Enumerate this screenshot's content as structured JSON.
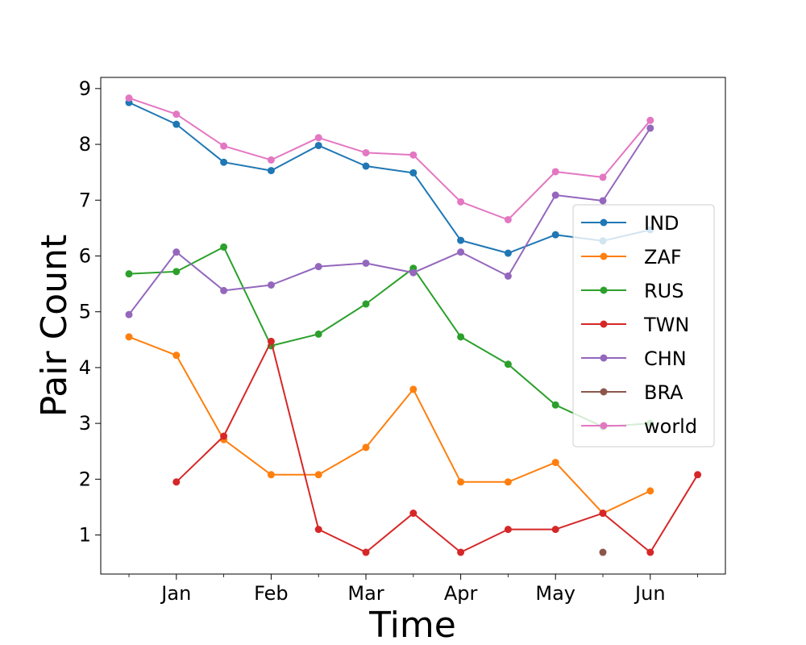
{
  "chart_data": {
    "type": "line",
    "xlabel": "Time",
    "ylabel": "Pair Count",
    "x_major_ticks": [
      "Jan",
      "Feb",
      "Mar",
      "Apr",
      "May",
      "Jun"
    ],
    "ylim": [
      0.3,
      9.2
    ],
    "y_ticks": [
      1,
      2,
      3,
      4,
      5,
      6,
      7,
      8,
      9
    ],
    "grid": false,
    "legend_position": "center-right",
    "points_per_series": 13,
    "series": [
      {
        "name": "IND",
        "color": "#1f77b4",
        "values": [
          8.75,
          8.36,
          7.68,
          7.53,
          7.98,
          7.61,
          7.49,
          6.28,
          6.05,
          6.38,
          6.27,
          6.47,
          null
        ]
      },
      {
        "name": "ZAF",
        "color": "#ff7f0e",
        "values": [
          4.55,
          4.22,
          2.71,
          2.08,
          2.08,
          2.57,
          3.61,
          1.95,
          1.95,
          2.3,
          1.39,
          1.79,
          null
        ]
      },
      {
        "name": "RUS",
        "color": "#2ca02c",
        "values": [
          5.68,
          5.72,
          6.16,
          4.39,
          4.6,
          5.14,
          5.78,
          4.55,
          4.06,
          3.33,
          2.94,
          3.0,
          null
        ]
      },
      {
        "name": "TWN",
        "color": "#d62728",
        "values": [
          null,
          1.95,
          2.77,
          4.47,
          1.1,
          0.69,
          1.39,
          0.69,
          1.1,
          1.1,
          1.39,
          0.69,
          2.08
        ]
      },
      {
        "name": "CHN",
        "color": "#9467bd",
        "values": [
          4.95,
          6.07,
          5.38,
          5.48,
          5.81,
          5.87,
          5.7,
          6.07,
          5.64,
          7.09,
          6.99,
          8.29,
          null
        ]
      },
      {
        "name": "BRA",
        "color": "#8c564b",
        "values": [
          null,
          null,
          null,
          null,
          null,
          null,
          null,
          null,
          null,
          null,
          0.69,
          null,
          null
        ]
      },
      {
        "name": "world",
        "color": "#e377c2",
        "values": [
          8.83,
          8.54,
          7.97,
          7.72,
          8.12,
          7.85,
          7.81,
          6.97,
          6.65,
          7.51,
          7.41,
          8.43,
          null
        ]
      }
    ]
  }
}
